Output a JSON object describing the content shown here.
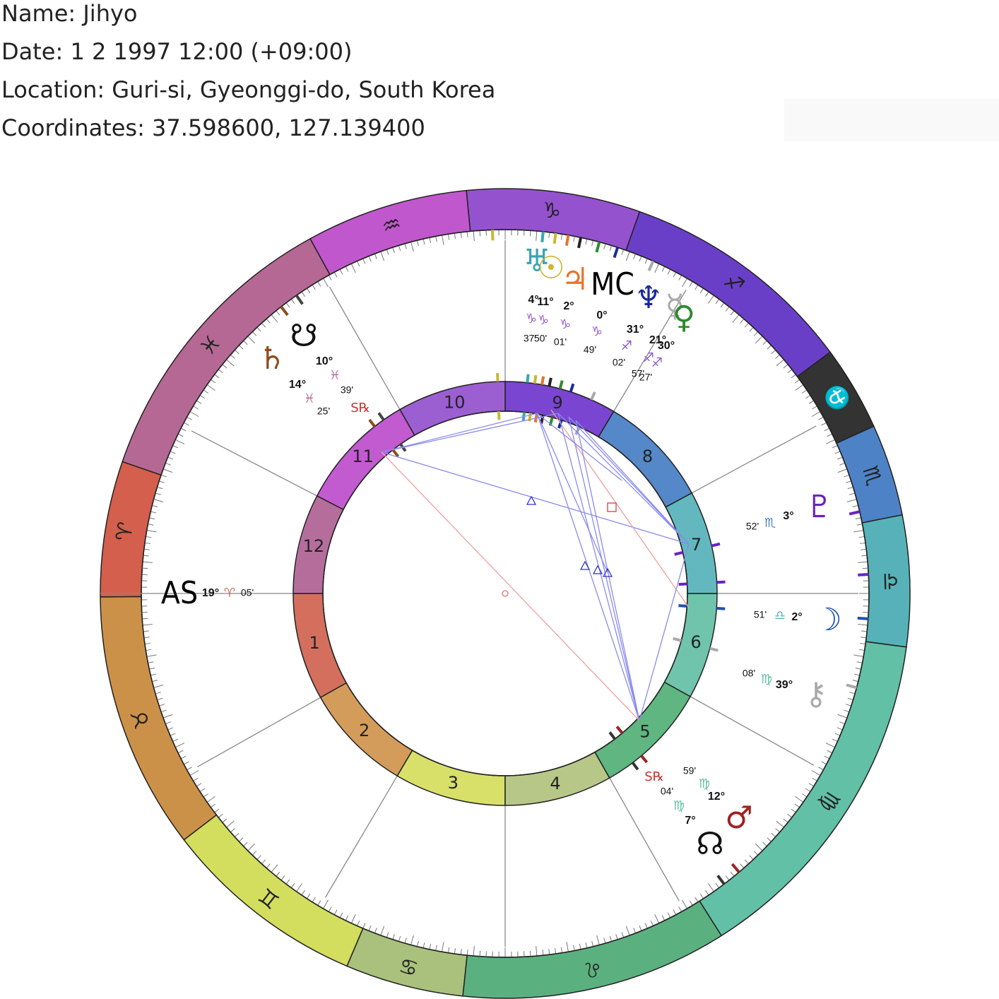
{
  "header": {
    "name": "Name: Jihyo",
    "date": "Date: 1 2 1997 12:00 (+09:00)",
    "location": "Location: Guri-si, Gyeonggi-do, South Korea",
    "coordinates": "Coordinates: 37.598600, 127.139400"
  },
  "signs": [
    "♈",
    "♉",
    "♊",
    "♋",
    "♌",
    "♍",
    "♎",
    "♏",
    "⛎",
    "♐",
    "♑",
    "♒",
    "♓"
  ],
  "houses": [
    "1",
    "2",
    "3",
    "4",
    "5",
    "6",
    "7",
    "8",
    "9",
    "10",
    "11",
    "12"
  ],
  "angles": {
    "ascendant": {
      "label": "AS",
      "degree": "19°",
      "sign": "♈",
      "minutes": "05'"
    },
    "midheaven": {
      "label": "MC",
      "degree": "0°",
      "sign": "♑",
      "minutes": "49'"
    }
  },
  "planets": [
    {
      "glyph": "♅",
      "degree": "4°",
      "sign": "♑",
      "minutes": "37'"
    },
    {
      "glyph": "☉",
      "degree": "11°",
      "sign": "♑",
      "minutes": "50'"
    },
    {
      "glyph": "♃",
      "degree": "2°",
      "sign": "♑",
      "minutes": "01'"
    },
    {
      "glyph": "♆",
      "degree": "31°",
      "sign": "♐",
      "minutes": "02'"
    },
    {
      "glyph": "☿",
      "degree": "21°",
      "sign": "♐",
      "minutes": "57'"
    },
    {
      "glyph": "♀",
      "degree": "30°",
      "sign": "♐",
      "minutes": "27'"
    },
    {
      "glyph": "☋",
      "degree": "10°",
      "sign": "♓",
      "minutes": "39'"
    },
    {
      "glyph": "♄",
      "degree": "14°",
      "sign": "♓",
      "minutes": "25'",
      "retrograde": "S℞"
    },
    {
      "glyph": "♇",
      "degree": "3°",
      "sign": "♏",
      "minutes": "52'"
    },
    {
      "glyph": "☽",
      "degree": "2°",
      "sign": "♎",
      "minutes": "51'"
    },
    {
      "glyph": "⚷",
      "degree": "39°",
      "sign": "♍",
      "minutes": "08'"
    },
    {
      "glyph": "♂",
      "degree": "12°",
      "sign": "♍",
      "minutes": "59'"
    },
    {
      "glyph": "☊",
      "degree": "7°",
      "sign": "♍",
      "minutes": "04'",
      "retrograde": "S℞"
    }
  ]
}
